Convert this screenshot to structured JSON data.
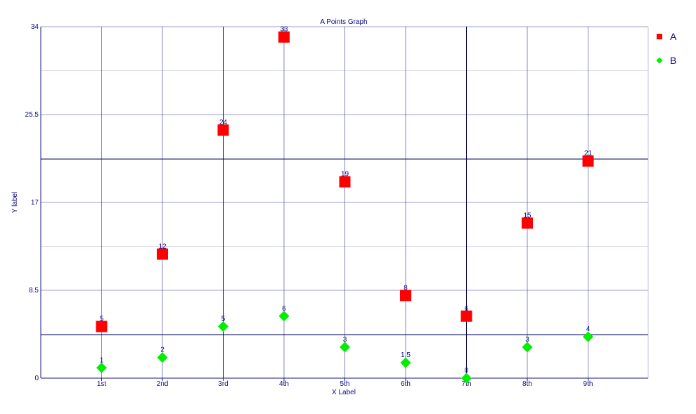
{
  "chart_data": {
    "type": "scatter",
    "title": "A Points Graph",
    "xlabel": "X Label",
    "ylabel": "Y label",
    "categories": [
      "1st",
      "2nd",
      "3rd",
      "4th",
      "5th",
      "6th",
      "7th",
      "8th",
      "9th"
    ],
    "ylim": [
      0,
      34
    ],
    "yticks": [
      "0",
      "8.5",
      "17",
      "25.5",
      "34"
    ],
    "grid": true,
    "legend_position": "top-right",
    "series": [
      {
        "name": "A",
        "values": [
          5,
          12,
          24,
          33,
          19,
          8,
          6,
          15,
          21
        ],
        "labels": [
          "5",
          "12",
          "24",
          "33",
          "19",
          "8",
          "6",
          "15",
          "21"
        ],
        "marker": "square",
        "color": "#ff0000"
      },
      {
        "name": "B",
        "values": [
          1,
          2,
          5,
          6,
          3,
          1.5,
          0,
          3,
          4
        ],
        "labels": [
          "1",
          "2",
          "5",
          "6",
          "3",
          "1.5",
          "0",
          "3",
          "4"
        ],
        "marker": "diamond",
        "color": "#00ee00"
      }
    ],
    "reference_lines": {
      "horizontal_y": [
        4.2,
        21.2
      ],
      "vertical_x": [
        "3rd",
        "7th"
      ]
    },
    "colors": {
      "text": "#0a0a80",
      "axis": "#1a1a80",
      "grid_major": "#3a3a9a",
      "grid_minor": "#b4b4d8",
      "reference": "#000050"
    }
  }
}
